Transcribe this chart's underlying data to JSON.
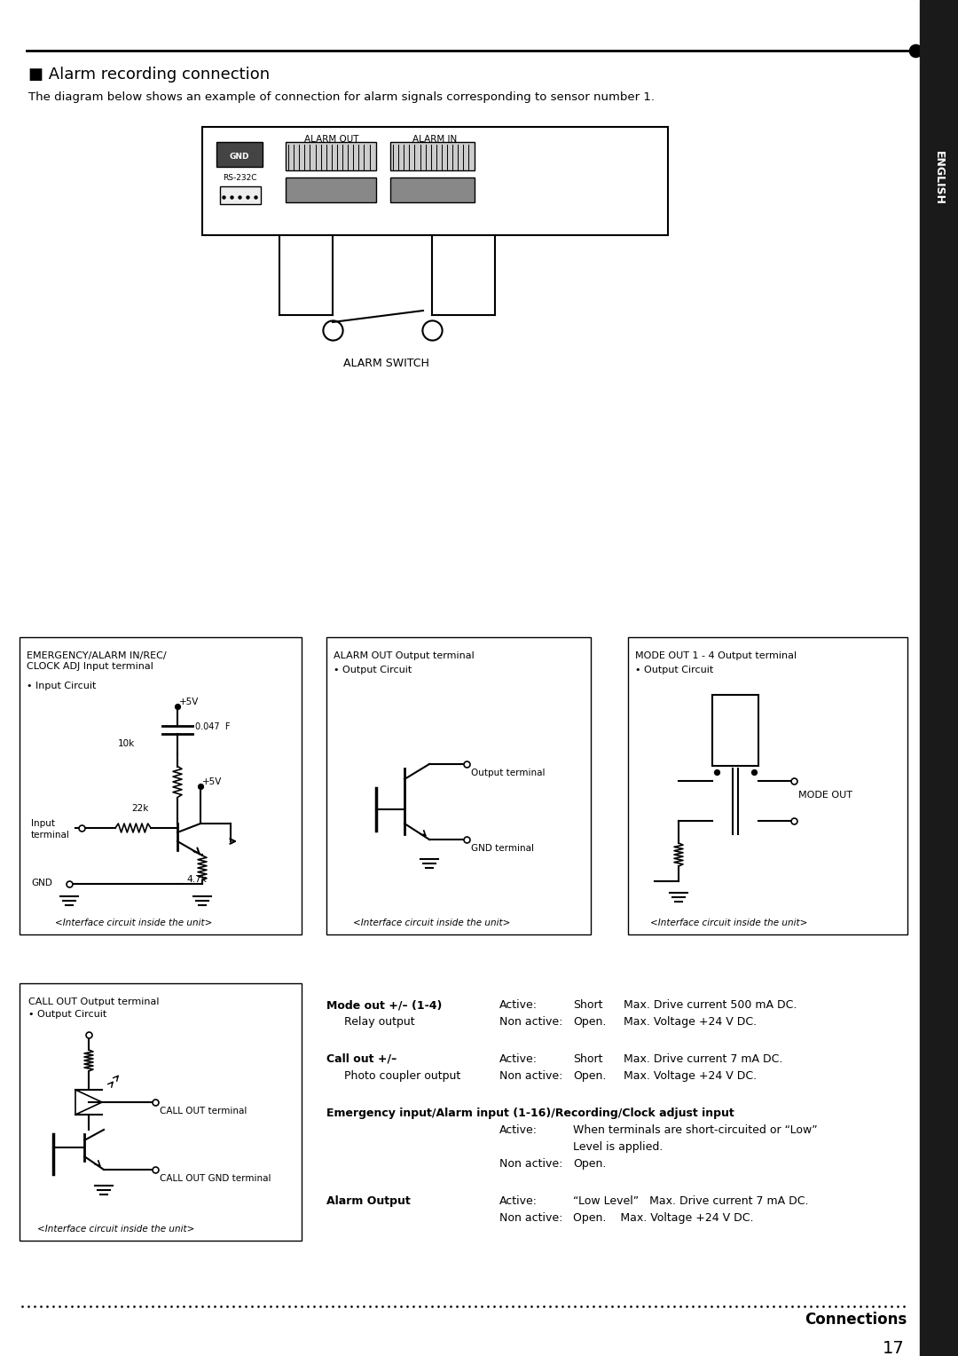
{
  "title": "Alarm recording connection",
  "subtitle": "The diagram below shows an example of connection for alarm signals corresponding to sensor number 1.",
  "bg_color": "#ffffff",
  "text_color": "#000000",
  "sidebar_color": "#1a1a1a",
  "sidebar_text": "ENGLISH",
  "page_number": "17",
  "footer_text": "Connections",
  "circuit_box1_title": "EMERGENCY/ALARM IN/REC/\nCLOCK ADJ Input terminal",
  "circuit_box1_sub": "• Input Circuit",
  "circuit_box2_title": "ALARM OUT Output terminal",
  "circuit_box2_sub": "• Output Circuit",
  "circuit_box3_title": "MODE OUT 1 - 4 Output terminal",
  "circuit_box3_sub": "• Output Circuit",
  "circuit_box4_title": "CALL OUT Output terminal",
  "circuit_box4_sub": "• Output Circuit",
  "interface_text": "<Interface circuit inside the unit>"
}
